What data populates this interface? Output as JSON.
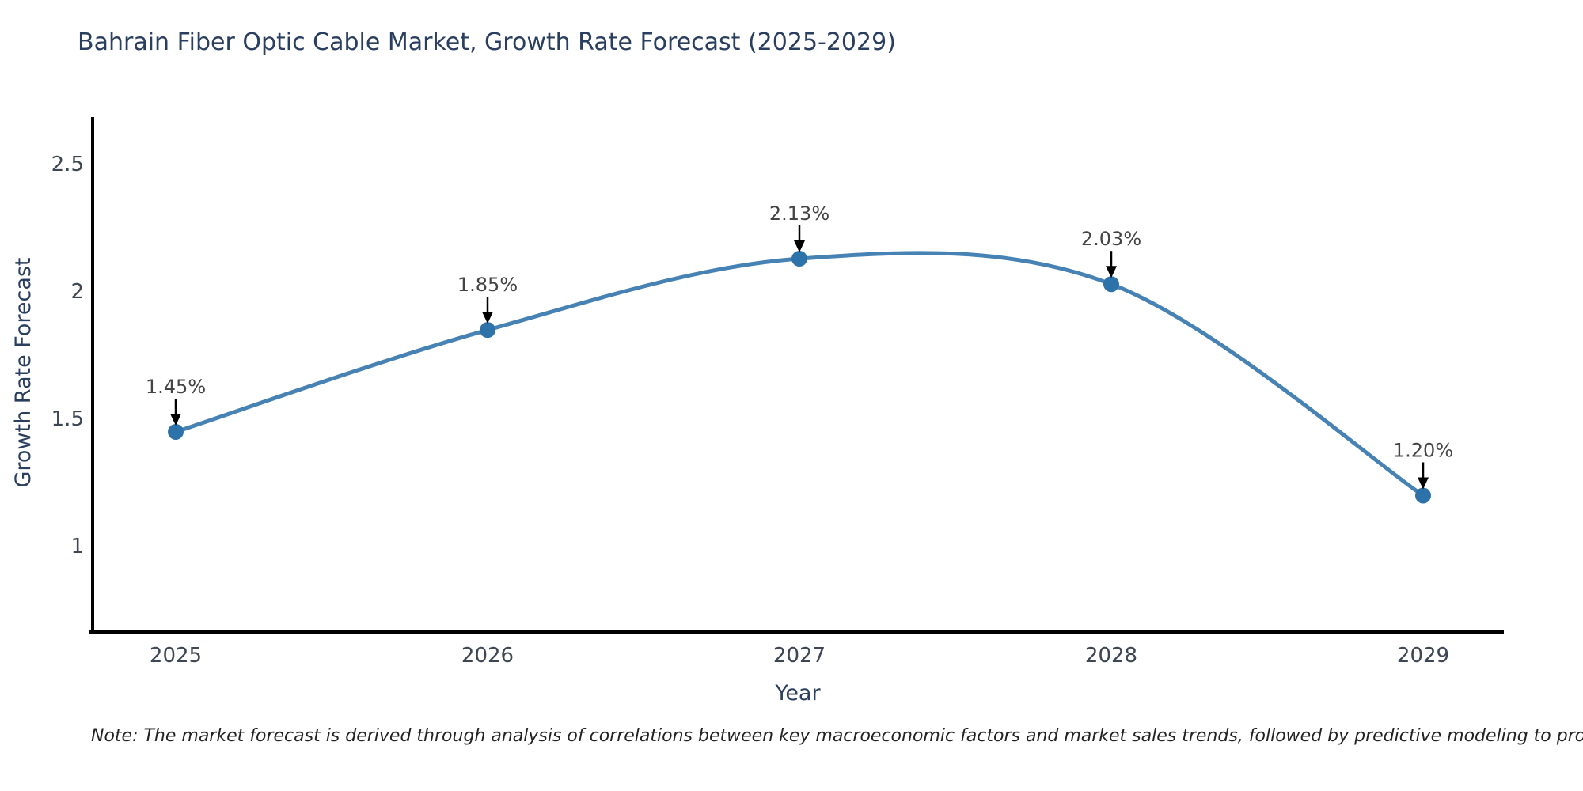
{
  "title": "Bahrain Fiber Optic Cable Market, Growth Rate Forecast (2025-2029)",
  "note": "Note: The market forecast is derived through analysis of correlations between key macroeconomic factors and market sales trends, followed by predictive modeling to project future sales",
  "chart_data": {
    "type": "line",
    "title": "Bahrain Fiber Optic Cable Market, Growth Rate Forecast (2025-2029)",
    "xlabel": "Year",
    "ylabel": "Growth Rate Forecast",
    "x": [
      "2025",
      "2026",
      "2027",
      "2028",
      "2029"
    ],
    "series": [
      {
        "name": "Growth Rate Forecast",
        "values": [
          1.45,
          1.85,
          2.13,
          2.03,
          1.2
        ]
      }
    ],
    "point_labels": [
      "1.45%",
      "1.85%",
      "2.13%",
      "2.03%",
      "1.20%"
    ],
    "yticks": [
      1,
      1.5,
      2,
      2.5
    ],
    "ylim": [
      0.658,
      2.68
    ],
    "line_shape": "spline",
    "grid": false,
    "legend": false,
    "annotations_style": "label-above-with-down-arrow",
    "colors": {
      "line": "#4682b4",
      "marker": "#2e72aa",
      "axis": "#000000",
      "title": "#2a3f5f",
      "axis_title": "#2a3f5f",
      "tick": "#3d4653",
      "annotation": "#444444",
      "note": "#222222",
      "background": "#ffffff"
    }
  }
}
